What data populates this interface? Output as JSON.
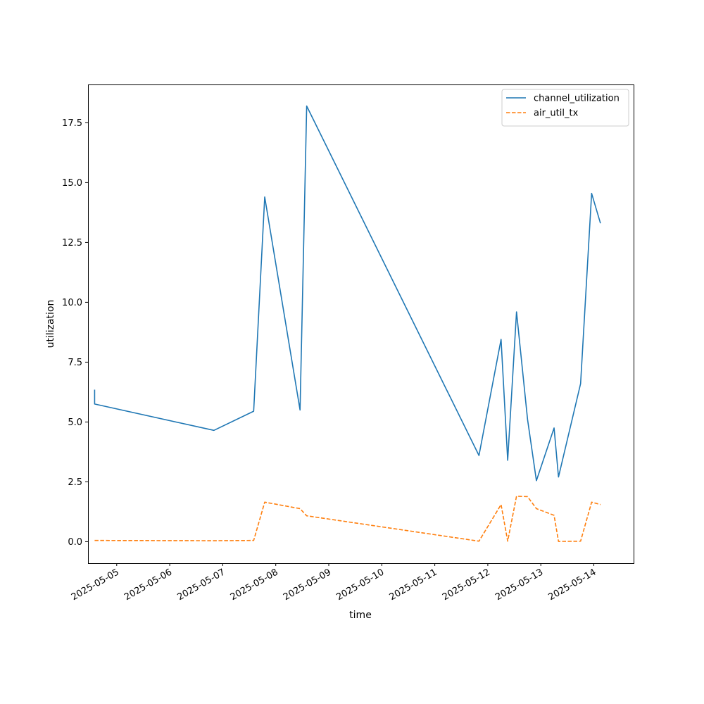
{
  "chart_data": {
    "type": "line",
    "xlabel": "time",
    "ylabel": "utilization",
    "xlim": [
      "2025-05-04T11:00",
      "2025-05-14T18:00"
    ],
    "ylim": [
      -0.9,
      19.1
    ],
    "x_ticks": [
      "2025-05-05",
      "2025-05-06",
      "2025-05-07",
      "2025-05-08",
      "2025-05-09",
      "2025-05-10",
      "2025-05-11",
      "2025-05-12",
      "2025-05-13",
      "2025-05-14"
    ],
    "y_ticks": [
      0.0,
      2.5,
      5.0,
      7.5,
      10.0,
      12.5,
      15.0,
      17.5
    ],
    "y_tick_labels": [
      "0.0",
      "2.5",
      "5.0",
      "7.5",
      "10.0",
      "12.5",
      "15.0",
      "17.5"
    ],
    "legend_position": "top-right",
    "grid": false,
    "series": [
      {
        "name": "channel_utilization",
        "color": "#1f77b4",
        "style": "solid",
        "points": [
          [
            "2025-05-04T14:00",
            6.35
          ],
          [
            "2025-05-04T14:00",
            5.75
          ],
          [
            "2025-05-06T20:00",
            4.65
          ],
          [
            "2025-05-07T14:00",
            5.45
          ],
          [
            "2025-05-07T19:00",
            14.4
          ],
          [
            "2025-05-08T11:00",
            5.5
          ],
          [
            "2025-05-08T14:00",
            18.2
          ],
          [
            "2025-05-11T20:00",
            3.6
          ],
          [
            "2025-05-12T06:00",
            8.45
          ],
          [
            "2025-05-12T09:00",
            3.4
          ],
          [
            "2025-05-12T13:00",
            9.6
          ],
          [
            "2025-05-12T18:00",
            5.1
          ],
          [
            "2025-05-12T22:00",
            2.55
          ],
          [
            "2025-05-13T06:00",
            4.75
          ],
          [
            "2025-05-13T08:00",
            2.7
          ],
          [
            "2025-05-13T18:00",
            6.6
          ],
          [
            "2025-05-13T23:00",
            14.55
          ],
          [
            "2025-05-14T03:00",
            13.3
          ]
        ]
      },
      {
        "name": "air_util_tx",
        "color": "#ff7f0e",
        "style": "dashed",
        "points": [
          [
            "2025-05-04T14:00",
            0.05
          ],
          [
            "2025-05-06T20:00",
            0.04
          ],
          [
            "2025-05-07T14:00",
            0.05
          ],
          [
            "2025-05-07T19:00",
            1.65
          ],
          [
            "2025-05-08T11:00",
            1.38
          ],
          [
            "2025-05-08T14:00",
            1.08
          ],
          [
            "2025-05-11T20:00",
            0.02
          ],
          [
            "2025-05-12T06:00",
            1.55
          ],
          [
            "2025-05-12T09:00",
            0.02
          ],
          [
            "2025-05-12T13:00",
            1.9
          ],
          [
            "2025-05-12T18:00",
            1.88
          ],
          [
            "2025-05-12T22:00",
            1.38
          ],
          [
            "2025-05-13T06:00",
            1.1
          ],
          [
            "2025-05-13T08:00",
            0.01
          ],
          [
            "2025-05-13T18:00",
            0.02
          ],
          [
            "2025-05-13T23:00",
            1.65
          ],
          [
            "2025-05-14T03:00",
            1.55
          ]
        ]
      }
    ]
  }
}
